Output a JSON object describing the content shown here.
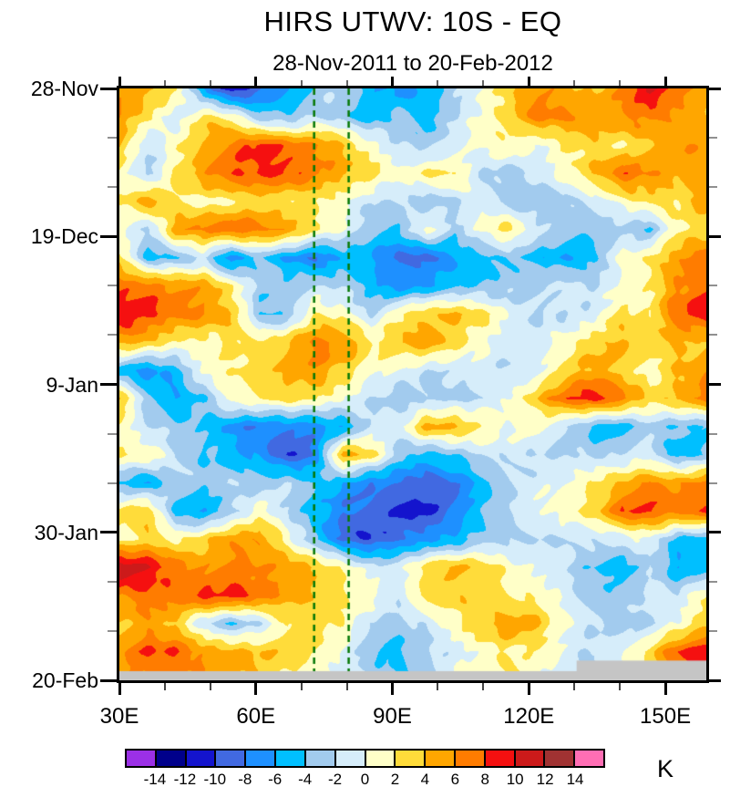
{
  "header": {
    "title": "HIRS UTWV: 10S - EQ",
    "subtitle": "28-Nov-2011 to 20-Feb-2012"
  },
  "y_axis": {
    "tick_labels": [
      "28-Nov",
      "19-Dec",
      "9-Jan",
      "30-Jan",
      "20-Feb"
    ],
    "tick_days": [
      0,
      21,
      42,
      63,
      84
    ],
    "minor_tick_days": [
      7,
      14,
      28,
      35,
      49,
      56,
      70,
      77
    ]
  },
  "x_axis": {
    "tick_labels": [
      "30E",
      "60E",
      "90E",
      "120E",
      "150E"
    ],
    "tick_lons": [
      30,
      60,
      90,
      120,
      150
    ],
    "minor_tick_lons": [
      40,
      50,
      70,
      80,
      100,
      110,
      130,
      140
    ],
    "lon_range": [
      30,
      159
    ]
  },
  "colorbar": {
    "unit": "K",
    "boundary_labels": [
      "-14",
      "-12",
      "-10",
      "-8",
      "-6",
      "-4",
      "-2",
      "0",
      "2",
      "4",
      "6",
      "8",
      "10",
      "12",
      "14"
    ],
    "colors": [
      "#9B30E6",
      "#00008B",
      "#1414CD",
      "#4169E1",
      "#1E90FF",
      "#00BFFF",
      "#A2CBEE",
      "#D6EDFA",
      "#FFFFC8",
      "#FFDC3A",
      "#FFA600",
      "#FF7C00",
      "#F51010",
      "#CC1A1A",
      "#A03232",
      "#FF6EB4"
    ]
  },
  "chart_data": {
    "type": "heatmap",
    "title": "HIRS UTWV: 10S - EQ",
    "period": "28-Nov-2011 to 20-Feb-2012",
    "value_unit": "K",
    "value_levels": [
      -14,
      -12,
      -10,
      -8,
      -6,
      -4,
      -2,
      0,
      2,
      4,
      6,
      8,
      10,
      12,
      14
    ],
    "lon_range": [
      30,
      159
    ],
    "day_range": [
      0,
      84
    ],
    "x_lons": [
      30,
      36,
      42,
      48,
      54,
      60,
      66,
      72,
      78,
      84,
      90,
      96,
      102,
      108,
      114,
      120,
      126,
      132,
      138,
      144,
      150,
      156
    ],
    "y_days_since_start": [
      0,
      4,
      8,
      12,
      16,
      20,
      24,
      28,
      32,
      36,
      40,
      44,
      48,
      52,
      56,
      60,
      64,
      68,
      72,
      76,
      80,
      84
    ],
    "values_K": [
      [
        5,
        5,
        3,
        -6,
        -12,
        -9,
        -6,
        -3,
        -2,
        -6,
        -7,
        -5,
        -2,
        0,
        3,
        6,
        5,
        4,
        6,
        10,
        7,
        5
      ],
      [
        6,
        2,
        -2,
        3,
        2,
        -3,
        -4,
        -2,
        -3,
        -5,
        -3,
        -6,
        -2,
        1,
        4,
        7,
        6,
        5,
        6,
        7,
        5,
        4
      ],
      [
        4,
        -2,
        1,
        5,
        7,
        9,
        7,
        6,
        4,
        1,
        -2,
        -3,
        -1,
        1,
        2,
        -1,
        2,
        3,
        2,
        4,
        6,
        5
      ],
      [
        1,
        -3,
        2,
        6,
        8,
        8,
        8,
        7,
        5,
        3,
        0,
        2,
        3,
        -2,
        -3,
        -2,
        1,
        4,
        8,
        6,
        4,
        6
      ],
      [
        2,
        5,
        2,
        1,
        2,
        3,
        2,
        2,
        1,
        -2,
        -2,
        -4,
        -2,
        0,
        -3,
        -3,
        -3,
        -1,
        1,
        3,
        2,
        5
      ],
      [
        1,
        -3,
        5,
        7,
        8,
        7,
        5,
        2,
        0,
        -3,
        -4,
        1,
        -3,
        1,
        3,
        -2,
        -3,
        -4,
        -2,
        -4,
        2,
        2
      ],
      [
        3,
        -5,
        -4,
        -2,
        -8,
        -4,
        -6,
        -8,
        -5,
        -6,
        -9,
        -9,
        -6,
        -5,
        -4,
        -5,
        -6,
        -4,
        1,
        2,
        5,
        8
      ],
      [
        8,
        7,
        6,
        5,
        2,
        -3,
        -3,
        -2,
        -2,
        -5,
        -7,
        -6,
        -5,
        -4,
        -3,
        -2,
        -1,
        -2,
        0,
        2,
        6,
        7
      ],
      [
        10,
        9,
        7,
        6,
        4,
        -4,
        -4,
        2,
        1,
        -2,
        2,
        4,
        4,
        3,
        -1,
        -2,
        -2,
        -1,
        3,
        2,
        8,
        9
      ],
      [
        5,
        4,
        2,
        1,
        2,
        2,
        4,
        7,
        6,
        2,
        4,
        6,
        3,
        0,
        -2,
        -1,
        1,
        4,
        4,
        3,
        4,
        4
      ],
      [
        -5,
        -7,
        -5,
        0,
        2,
        3,
        5,
        6,
        3,
        1,
        0,
        -2,
        -2,
        -1,
        -2,
        0,
        3,
        5,
        3,
        1,
        4,
        6
      ],
      [
        4,
        -3,
        -6,
        -4,
        1,
        2,
        3,
        2,
        0,
        -2,
        -3,
        -2,
        -3,
        -2,
        0,
        4,
        8,
        9,
        7,
        3,
        5,
        7
      ],
      [
        1,
        -2,
        -3,
        -4,
        -7,
        -8,
        -7,
        -7,
        -6,
        -2,
        -1,
        5,
        5,
        2,
        0,
        1,
        -2,
        -5,
        -6,
        -3,
        -4,
        -4
      ],
      [
        2,
        2,
        -2,
        -4,
        -5,
        -6,
        -10,
        -8,
        5,
        3,
        -3,
        -5,
        -4,
        -2,
        -1,
        -2,
        -2,
        -3,
        -2,
        -1,
        -5,
        -4
      ],
      [
        -5,
        -6,
        -2,
        -3,
        -2,
        -3,
        -2,
        -4,
        -6,
        -8,
        -8,
        -9,
        -8,
        -5,
        -2,
        -1,
        0,
        2,
        4,
        6,
        6,
        7
      ],
      [
        2,
        4,
        -5,
        -6,
        -3,
        1,
        -2,
        -5,
        -8,
        -9,
        -11,
        -11,
        -7,
        -4,
        -2,
        0,
        1,
        3,
        8,
        8,
        7,
        9
      ],
      [
        1,
        3,
        1,
        3,
        6,
        6,
        1,
        -4,
        -9,
        -10,
        -8,
        -7,
        -6,
        -3,
        -2,
        -2,
        -2,
        -2,
        -1,
        0,
        -5,
        -6
      ],
      [
        12,
        10,
        7,
        6,
        7,
        6,
        5,
        4,
        2,
        -1,
        -1,
        3,
        5,
        4,
        1,
        -1,
        -2,
        -4,
        -5,
        -2,
        -6,
        -5
      ],
      [
        6,
        7,
        7,
        9,
        9,
        7,
        5,
        4,
        3,
        1,
        -2,
        3,
        4,
        3,
        2,
        1,
        -1,
        -3,
        -3,
        -1,
        -2,
        2
      ],
      [
        4,
        5,
        3,
        -2,
        -4,
        -2,
        2,
        3,
        2,
        -2,
        -3,
        -2,
        1,
        4,
        6,
        4,
        0,
        -2,
        -3,
        -2,
        0,
        3
      ],
      [
        6,
        8,
        8,
        6,
        5,
        4,
        3,
        2,
        0,
        -3,
        -5,
        -3,
        -1,
        1,
        2,
        1,
        -1,
        -2,
        0,
        3,
        8,
        9
      ],
      [
        5,
        6,
        6,
        5,
        4,
        3,
        2,
        1,
        -1,
        -3,
        -4,
        -2,
        0,
        1,
        2,
        1,
        -1,
        -2,
        0,
        2,
        6,
        7
      ]
    ],
    "dashed_lines_lon": [
      72.8,
      80.4
    ],
    "dashed_line_color": "#067806",
    "missing_color": "#C5C5C5",
    "missing_regions": [
      {
        "lon_min": 30,
        "lon_max": 159,
        "day_min": 82.7,
        "day_max": 84
      },
      {
        "lon_min": 130.5,
        "lon_max": 159,
        "day_min": 81.2,
        "day_max": 84
      }
    ]
  }
}
